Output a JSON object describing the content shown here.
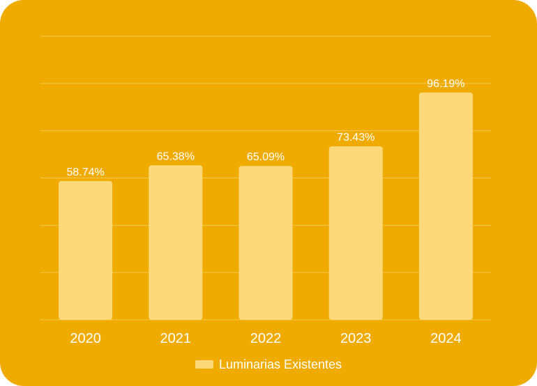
{
  "colors": {
    "background": "#efab00",
    "bar": "#fdd97a",
    "grid": "#f5c84e",
    "text": "#ffffff"
  },
  "chart_data": {
    "type": "bar",
    "categories": [
      "2020",
      "2021",
      "2022",
      "2023",
      "2024"
    ],
    "series": [
      {
        "name": "Luminarias Existentes",
        "values": [
          58.74,
          65.38,
          65.09,
          73.43,
          96.19
        ],
        "data_labels": [
          "58.74%",
          "65.38%",
          "65.09%",
          "73.43%",
          "96.19%"
        ]
      }
    ],
    "title": "",
    "xlabel": "",
    "ylabel": "",
    "ylim": [
      0,
      120
    ],
    "grid": true,
    "y_tick_labels_visible": false,
    "legend": "bottom-center"
  }
}
